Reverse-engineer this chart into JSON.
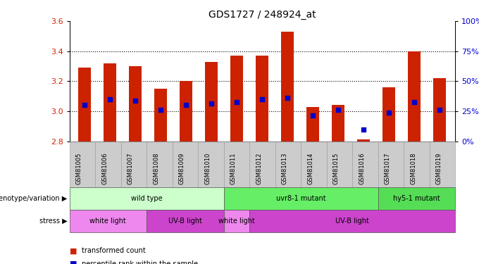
{
  "title": "GDS1727 / 248924_at",
  "samples": [
    "GSM81005",
    "GSM81006",
    "GSM81007",
    "GSM81008",
    "GSM81009",
    "GSM81010",
    "GSM81011",
    "GSM81012",
    "GSM81013",
    "GSM81014",
    "GSM81015",
    "GSM81016",
    "GSM81017",
    "GSM81018",
    "GSM81019"
  ],
  "bar_tops": [
    3.29,
    3.32,
    3.3,
    3.15,
    3.2,
    3.33,
    3.37,
    3.37,
    3.53,
    3.03,
    3.04,
    2.81,
    3.16,
    3.4,
    3.22
  ],
  "bar_base": 2.8,
  "blue_dot_values": [
    3.04,
    3.08,
    3.07,
    3.01,
    3.04,
    3.05,
    3.06,
    3.08,
    3.09,
    2.97,
    3.01,
    2.88,
    2.99,
    3.06,
    3.01
  ],
  "ylim": [
    2.8,
    3.6
  ],
  "yticks": [
    2.8,
    3.0,
    3.2,
    3.4,
    3.6
  ],
  "right_yticks": [
    0,
    25,
    50,
    75,
    100
  ],
  "bar_color": "#cc2200",
  "dot_color": "#0000cc",
  "grid_color": "#000000",
  "genotype_groups": [
    {
      "label": "wild type",
      "start": 0,
      "end": 6,
      "color": "#ccffcc"
    },
    {
      "label": "uvr8-1 mutant",
      "start": 6,
      "end": 12,
      "color": "#66ee66"
    },
    {
      "label": "hy5-1 mutant",
      "start": 12,
      "end": 15,
      "color": "#55dd55"
    }
  ],
  "stress_groups": [
    {
      "label": "white light",
      "start": 0,
      "end": 3,
      "color": "#ee88ee"
    },
    {
      "label": "UV-B light",
      "start": 3,
      "end": 6,
      "color": "#cc44cc"
    },
    {
      "label": "white light",
      "start": 6,
      "end": 7,
      "color": "#ee88ee"
    },
    {
      "label": "UV-B light",
      "start": 7,
      "end": 15,
      "color": "#cc44cc"
    }
  ],
  "legend_red_label": "transformed count",
  "legend_blue_label": "percentile rank within the sample",
  "bg_color": "#ffffff",
  "plot_bg_color": "#ffffff",
  "tick_label_color_left": "#cc2200",
  "tick_label_color_right": "#0000cc",
  "title_color": "#000000",
  "bar_width": 0.5,
  "annotation_genotype": "genotype/variation",
  "annotation_stress": "stress",
  "sample_bg_color": "#cccccc",
  "sample_border_color": "#999999"
}
